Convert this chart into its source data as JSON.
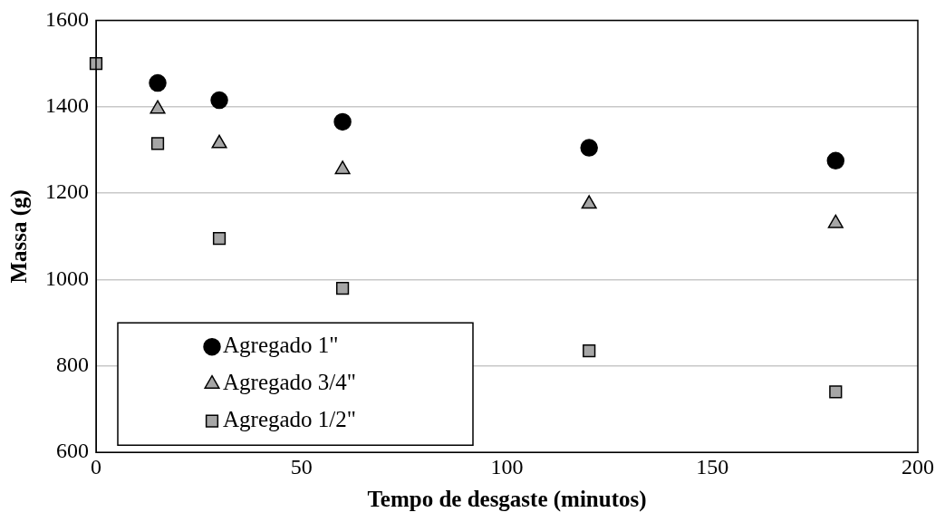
{
  "chart_data": {
    "type": "scatter",
    "xlabel": "Tempo de desgaste (minutos)",
    "ylabel": "Massa (g)",
    "xlim": [
      0,
      200
    ],
    "xticks": [
      0,
      50,
      100,
      150,
      200
    ],
    "ylim": [
      600,
      1600
    ],
    "yticks": [
      600,
      800,
      1000,
      1200,
      1400,
      1600
    ],
    "grid": "y",
    "legend": "bottom left",
    "series": [
      {
        "name": "Agregado 1\"",
        "color": "#000000",
        "marker": "circle",
        "x": [
          15,
          30,
          60,
          120,
          180
        ],
        "values": [
          1455,
          1415,
          1365,
          1305,
          1275
        ]
      },
      {
        "name": "Agregado 3/4\"",
        "color": "#a6a6a6",
        "marker": "triangle",
        "x": [
          15,
          30,
          60,
          120,
          180
        ],
        "values": [
          1395,
          1315,
          1255,
          1175,
          1130
        ]
      },
      {
        "name": "Agregado 1/2\"",
        "color": "#a6a6a6",
        "marker": "square",
        "x": [
          0,
          15,
          30,
          60,
          120,
          180
        ],
        "values": [
          1500,
          1315,
          1095,
          980,
          835,
          740
        ]
      }
    ]
  }
}
